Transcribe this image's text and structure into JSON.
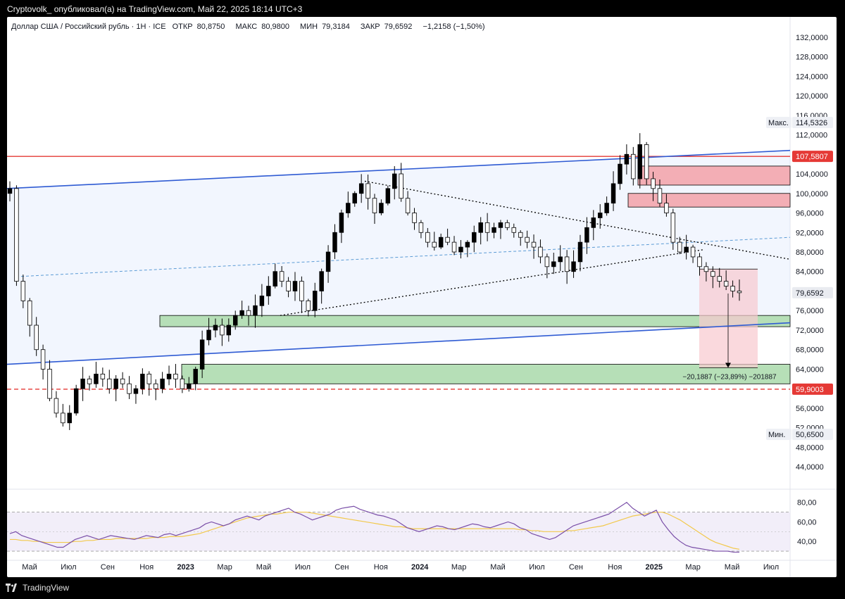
{
  "topbar": {
    "text": "Cryptovolk_ опубликовал(а) на TradingView.com, Май 22, 2025 18:14 UTC+3"
  },
  "header": {
    "symbol": "Доллар США / Российский рубль · 1Н · ICE",
    "open_label": "ОТКР",
    "open": "80,8750",
    "high_label": "МАКС",
    "high": "80,9800",
    "low_label": "МИН",
    "low": "79,3184",
    "close_label": "ЗАКР",
    "close": "79,6592",
    "change": "−1,2158 (−1,50%)"
  },
  "footer": {
    "brand": "TradingView"
  },
  "colors": {
    "bull": "#000000",
    "bear": "#ffffff",
    "hline_red": "#e53935",
    "channel": "#2f5bd3",
    "support_zone": "#b6dfb7",
    "resistance_zone": "#f3aeb5",
    "rsi": "#7a4fa8",
    "rsi_ma": "#f2c94c"
  },
  "chart_data": {
    "type": "candlestick",
    "price_ticks": [
      "132,0000",
      "128,0000",
      "124,0000",
      "120,0000",
      "116,0000",
      "112,0000",
      "108,0000",
      "104,0000",
      "100,0000",
      "96,0000",
      "92,0000",
      "88,0000",
      "84,0000",
      "80,0000",
      "76,0000",
      "72,0000",
      "68,0000",
      "64,0000",
      "60,0000",
      "56,0000",
      "52,0000",
      "48,0000",
      "44,0000"
    ],
    "price_tick_values": [
      132,
      128,
      124,
      120,
      116,
      112,
      108,
      104,
      100,
      96,
      92,
      88,
      84,
      80,
      76,
      72,
      68,
      64,
      60,
      56,
      52,
      48,
      44
    ],
    "ylim": [
      41,
      135
    ],
    "time_labels": [
      "Май",
      "Июл",
      "Сен",
      "Ноя",
      "2023",
      "Мар",
      "Май",
      "Июл",
      "Сен",
      "Ноя",
      "2024",
      "Мар",
      "Май",
      "Июл",
      "Сен",
      "Ноя",
      "2025",
      "Мар",
      "Май",
      "Июл"
    ],
    "year_labels": [
      "2023",
      "2024",
      "2025"
    ],
    "price_tags": [
      {
        "value": 114.5326,
        "label": "114,5326",
        "prefix": "Макс.",
        "style": "plain"
      },
      {
        "value": 107.5807,
        "label": "107,5807",
        "style": "red"
      },
      {
        "value": 79.6592,
        "label": "79,6592",
        "style": "current"
      },
      {
        "value": 59.9003,
        "label": "59,9003",
        "style": "red"
      },
      {
        "value": 50.65,
        "label": "50,6500",
        "prefix": "Мин.",
        "style": "plain"
      }
    ],
    "measure_label": "−20,1887 (−23,89%) −201887",
    "rsi": {
      "ticks": [
        "80,00",
        "60,00",
        "40,00"
      ],
      "tick_values": [
        80,
        60,
        40
      ],
      "ylim": [
        25,
        87
      ],
      "upper_band": 70,
      "lower_band": 30,
      "values": [
        48,
        50,
        46,
        44,
        42,
        40,
        38,
        36,
        34,
        34,
        38,
        42,
        44,
        46,
        44,
        42,
        44,
        46,
        45,
        44,
        43,
        42,
        44,
        46,
        45,
        44,
        47,
        48,
        46,
        48,
        50,
        52,
        54,
        58,
        60,
        58,
        56,
        58,
        62,
        64,
        66,
        64,
        62,
        66,
        68,
        70,
        72,
        74,
        70,
        68,
        65,
        62,
        64,
        66,
        68,
        72,
        74,
        75,
        76,
        73,
        71,
        69,
        67,
        66,
        64,
        62,
        58,
        54,
        52,
        50,
        52,
        54,
        56,
        55,
        53,
        52,
        54,
        56,
        58,
        57,
        55,
        54,
        56,
        58,
        60,
        58,
        54,
        52,
        48,
        46,
        44,
        42,
        44,
        48,
        52,
        56,
        58,
        60,
        62,
        64,
        66,
        68,
        72,
        76,
        80,
        74,
        70,
        66,
        69,
        72,
        60,
        52,
        45,
        40,
        36,
        34,
        33,
        32,
        31,
        30,
        30,
        30,
        29,
        29
      ],
      "ma": [
        42,
        42,
        41,
        41,
        40,
        40,
        39,
        39,
        39,
        39,
        39,
        40,
        40,
        41,
        41,
        42,
        42,
        42,
        43,
        43,
        43,
        43,
        43,
        43,
        44,
        44,
        44,
        45,
        45,
        45,
        46,
        47,
        48,
        50,
        52,
        54,
        56,
        58,
        60,
        62,
        64,
        65,
        66,
        67,
        68,
        68,
        69,
        70,
        70,
        70,
        70,
        69,
        68,
        67,
        66,
        65,
        64,
        63,
        62,
        61,
        60,
        59,
        58,
        57,
        56,
        55,
        55,
        54,
        53,
        53,
        53,
        53,
        53,
        53,
        53,
        53,
        53,
        53,
        53,
        53,
        53,
        53,
        53,
        53,
        53,
        53,
        52,
        52,
        51,
        51,
        50,
        50,
        50,
        50,
        51,
        51,
        52,
        53,
        54,
        55,
        56,
        58,
        60,
        62,
        64,
        66,
        67,
        68,
        69,
        70,
        70,
        68,
        65,
        62,
        58,
        54,
        50,
        46,
        42,
        39,
        37,
        35,
        33,
        32
      ]
    },
    "close_series": [
      101,
      82,
      78,
      73,
      68,
      64,
      58,
      55,
      53,
      55,
      60,
      62,
      61,
      63,
      62,
      60,
      62,
      61,
      59,
      60,
      63,
      61,
      60,
      62,
      63,
      62,
      60,
      61,
      64,
      70,
      72,
      73,
      71,
      73,
      75,
      76,
      75,
      77,
      79,
      81,
      84,
      82,
      80,
      82,
      78,
      76,
      80,
      84,
      88,
      92,
      96,
      98,
      100,
      102,
      99,
      96,
      98,
      101,
      104,
      99,
      96,
      94,
      92,
      90,
      89,
      91,
      90,
      88,
      89,
      90,
      92,
      94,
      92,
      93,
      94,
      93,
      92,
      91,
      90,
      89,
      87,
      85,
      86,
      87,
      84,
      86,
      90,
      93,
      95,
      96,
      98,
      102,
      106,
      108,
      103,
      110,
      103,
      101,
      98,
      96,
      90,
      88,
      89,
      87,
      85,
      84,
      83,
      82,
      81,
      80,
      79.66
    ]
  }
}
